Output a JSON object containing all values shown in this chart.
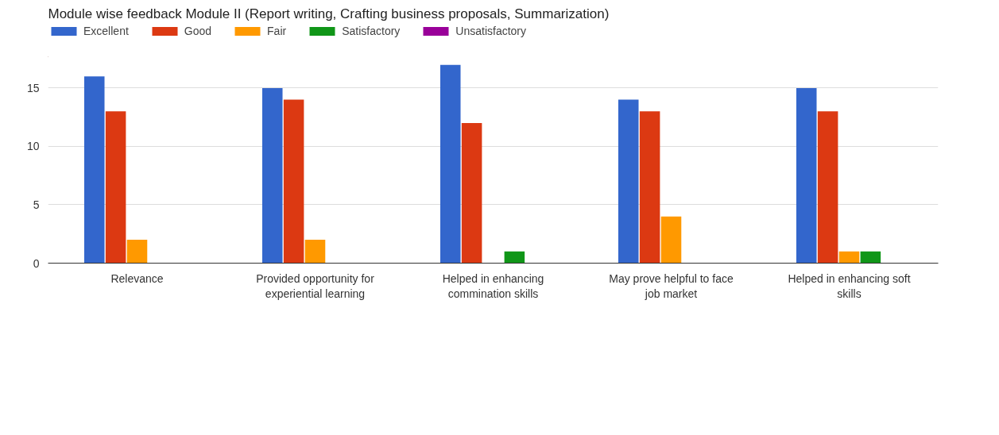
{
  "chart_data": {
    "type": "bar",
    "title": "Module wise feedback   Module II (Report writing, Crafting business proposals, Summarization)",
    "categories": [
      "Relevance",
      "Provided opportunity for experiential learning",
      "Helped in enhancing commination skills",
      "May prove helpful to face job market",
      "Helped in enhancing soft skills"
    ],
    "series": [
      {
        "name": "Excellent",
        "color": "#3366cc",
        "values": [
          16,
          15,
          17,
          14,
          15
        ]
      },
      {
        "name": "Good",
        "color": "#dc3912",
        "values": [
          13,
          14,
          12,
          13,
          13
        ]
      },
      {
        "name": "Fair",
        "color": "#ff9900",
        "values": [
          2,
          2,
          0,
          4,
          1
        ]
      },
      {
        "name": "Satisfactory",
        "color": "#109618",
        "values": [
          0,
          0,
          1,
          0,
          1
        ]
      },
      {
        "name": "Unsatisfactory",
        "color": "#990099",
        "values": [
          0,
          0,
          0,
          0,
          0
        ]
      }
    ],
    "ylim": [
      0,
      17
    ],
    "yticks": [
      0,
      5,
      10,
      15
    ],
    "grid": "y",
    "legend": "top left"
  }
}
